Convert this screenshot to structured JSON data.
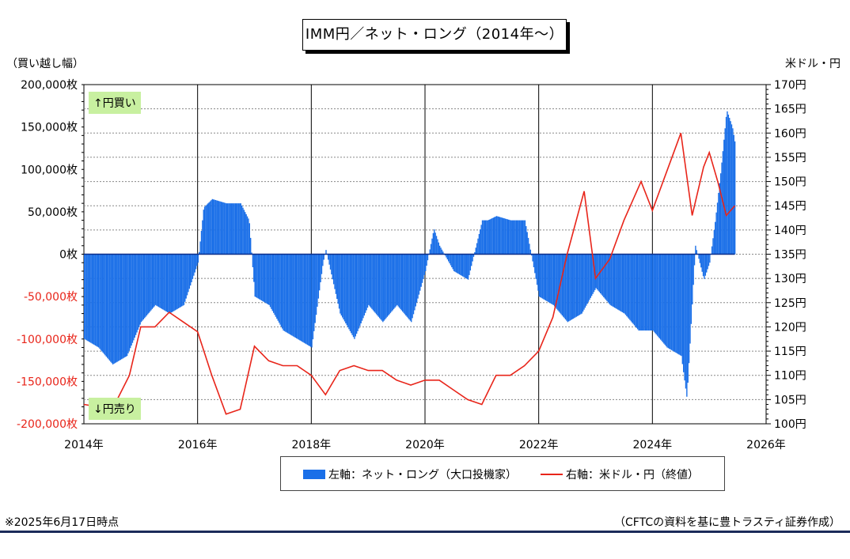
{
  "header": {
    "title": "IMM円／ネット・ロング（2014年〜）",
    "left_unit": "（買い越し幅）",
    "right_unit": "米ドル・円"
  },
  "badges": {
    "up": "↑円買い",
    "down": "↓円売り"
  },
  "legend": {
    "bar_label": "左軸：ネット・ロング（大口投機家）",
    "line_label": "右軸：米ドル・円（終値）"
  },
  "notes": {
    "left": "※2025年6月17日時点",
    "right": "（CFTCの資料を基に豊トラスティ証券作成）"
  },
  "colors": {
    "bar": "#1a6fe8",
    "line": "#e8251a",
    "negative_tick": "#e8251a",
    "footer": "#1b2b5a"
  },
  "chart_data": {
    "type": "bar+line",
    "x_ticks": [
      "2014年",
      "2016年",
      "2018年",
      "2020年",
      "2022年",
      "2024年",
      "2026年"
    ],
    "xlim": [
      2014.0,
      2026.0
    ],
    "left_axis": {
      "ylim": [
        -200000,
        200000
      ],
      "ticks": [
        {
          "value": 200000,
          "label": "200,000枚"
        },
        {
          "value": 150000,
          "label": "150,000枚"
        },
        {
          "value": 100000,
          "label": "100,000枚"
        },
        {
          "value": 50000,
          "label": "50,000枚"
        },
        {
          "value": 0,
          "label": "0枚"
        },
        {
          "value": -50000,
          "label": "-50,000枚"
        },
        {
          "value": -100000,
          "label": "-100,000枚"
        },
        {
          "value": -150000,
          "label": "-150,000枚"
        },
        {
          "value": -200000,
          "label": "-200,000枚"
        }
      ]
    },
    "right_axis": {
      "ylim": [
        100,
        170
      ],
      "ticks": [
        {
          "value": 170,
          "label": "170円"
        },
        {
          "value": 165,
          "label": "165円"
        },
        {
          "value": 160,
          "label": "160円"
        },
        {
          "value": 155,
          "label": "155円"
        },
        {
          "value": 150,
          "label": "150円"
        },
        {
          "value": 145,
          "label": "145円"
        },
        {
          "value": 140,
          "label": "140円"
        },
        {
          "value": 135,
          "label": "135円"
        },
        {
          "value": 130,
          "label": "130円"
        },
        {
          "value": 125,
          "label": "125円"
        },
        {
          "value": 120,
          "label": "120円"
        },
        {
          "value": 115,
          "label": "115円"
        },
        {
          "value": 110,
          "label": "110円"
        },
        {
          "value": 105,
          "label": "105円"
        },
        {
          "value": 100,
          "label": "100円"
        }
      ]
    },
    "grid": true,
    "series": [
      {
        "name": "左軸：ネット・ロング（大口投機家）",
        "type": "bar",
        "axis": "left",
        "x": [
          2014.0,
          2014.25,
          2014.5,
          2014.75,
          2015.0,
          2015.25,
          2015.5,
          2015.75,
          2016.0,
          2016.1,
          2016.25,
          2016.5,
          2016.75,
          2016.9,
          2017.0,
          2017.25,
          2017.5,
          2017.75,
          2018.0,
          2018.2,
          2018.25,
          2018.5,
          2018.75,
          2019.0,
          2019.25,
          2019.5,
          2019.75,
          2020.0,
          2020.15,
          2020.25,
          2020.5,
          2020.75,
          2021.0,
          2021.1,
          2021.25,
          2021.5,
          2021.75,
          2022.0,
          2022.25,
          2022.5,
          2022.75,
          2023.0,
          2023.25,
          2023.5,
          2023.75,
          2024.0,
          2024.25,
          2024.5,
          2024.6,
          2024.75,
          2024.9,
          2025.0,
          2025.1,
          2025.2,
          2025.3,
          2025.4,
          2025.45
        ],
        "values": [
          -100000,
          -110000,
          -130000,
          -120000,
          -80000,
          -60000,
          -70000,
          -60000,
          -10000,
          55000,
          65000,
          60000,
          60000,
          40000,
          -50000,
          -60000,
          -90000,
          -100000,
          -110000,
          -10000,
          5000,
          -70000,
          -100000,
          -60000,
          -80000,
          -60000,
          -80000,
          -20000,
          30000,
          10000,
          -20000,
          -30000,
          40000,
          40000,
          45000,
          40000,
          40000,
          -50000,
          -60000,
          -80000,
          -70000,
          -40000,
          -60000,
          -70000,
          -90000,
          -90000,
          -110000,
          -120000,
          -170000,
          10000,
          -30000,
          -10000,
          40000,
          100000,
          170000,
          150000,
          130000
        ]
      },
      {
        "name": "右軸：米ドル・円（終値）",
        "type": "line",
        "axis": "right",
        "x": [
          2014.0,
          2014.5,
          2014.8,
          2015.0,
          2015.25,
          2015.5,
          2015.75,
          2016.0,
          2016.25,
          2016.5,
          2016.75,
          2017.0,
          2017.25,
          2017.5,
          2017.75,
          2018.0,
          2018.25,
          2018.5,
          2018.75,
          2019.0,
          2019.25,
          2019.5,
          2019.75,
          2020.0,
          2020.25,
          2020.5,
          2020.75,
          2021.0,
          2021.25,
          2021.5,
          2021.75,
          2022.0,
          2022.25,
          2022.5,
          2022.8,
          2023.0,
          2023.25,
          2023.5,
          2023.8,
          2024.0,
          2024.25,
          2024.5,
          2024.7,
          2024.9,
          2025.0,
          2025.15,
          2025.3,
          2025.45
        ],
        "values": [
          104,
          103,
          110,
          120,
          120,
          123,
          121,
          119,
          110,
          102,
          103,
          116,
          113,
          112,
          112,
          110,
          106,
          111,
          112,
          111,
          111,
          109,
          108,
          109,
          109,
          107,
          105,
          104,
          110,
          110,
          112,
          115,
          122,
          135,
          148,
          130,
          134,
          142,
          150,
          144,
          152,
          160,
          143,
          153,
          156,
          150,
          143,
          145
        ]
      }
    ]
  }
}
